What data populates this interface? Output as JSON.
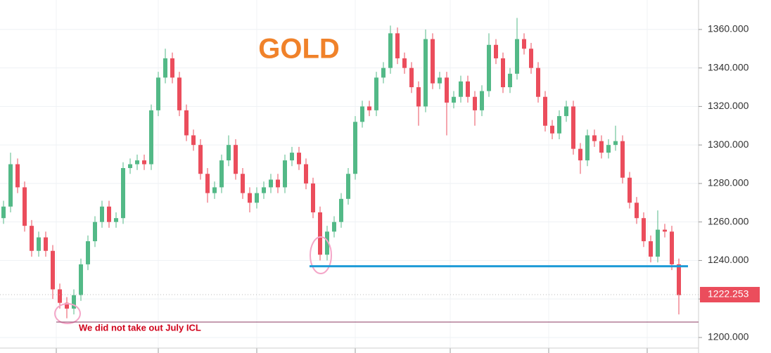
{
  "chart_data": {
    "type": "candlestick",
    "title": "GOLD",
    "annotation": "We did not take out July ICL",
    "up_color": "#53b987",
    "down_color": "#eb4d5c",
    "ylim": [
      1194.5,
      1375.3
    ],
    "yticks": [
      {
        "value": 1200,
        "label": "1200.000"
      },
      {
        "value": 1220,
        "label": "1220.000"
      },
      {
        "value": 1240,
        "label": "1240.000"
      },
      {
        "value": 1260,
        "label": "1260.000"
      },
      {
        "value": 1280,
        "label": "1280.000"
      },
      {
        "value": 1300,
        "label": "1300.000"
      },
      {
        "value": 1320,
        "label": "1320.000"
      },
      {
        "value": 1340,
        "label": "1340.000"
      },
      {
        "value": 1360,
        "label": "1360.000"
      }
    ],
    "grid": true,
    "last_price": 1222.253,
    "hlines": [
      {
        "value": 1237,
        "color": "#1e9bd7"
      },
      {
        "value": 1208,
        "color": "#8b3a62"
      }
    ],
    "candles": [
      [
        1262,
        1271,
        1259,
        1268
      ],
      [
        1268,
        1296,
        1265,
        1290
      ],
      [
        1290,
        1293,
        1275,
        1278
      ],
      [
        1278,
        1281,
        1255,
        1258
      ],
      [
        1258,
        1261,
        1242,
        1245
      ],
      [
        1245,
        1255,
        1242,
        1252
      ],
      [
        1252,
        1255,
        1242,
        1245
      ],
      [
        1245,
        1248,
        1220,
        1225
      ],
      [
        1225,
        1228,
        1215,
        1218
      ],
      [
        1218,
        1221,
        1210,
        1215
      ],
      [
        1215,
        1225,
        1212,
        1222
      ],
      [
        1222,
        1241,
        1219,
        1238
      ],
      [
        1238,
        1253,
        1235,
        1250
      ],
      [
        1250,
        1263,
        1247,
        1260
      ],
      [
        1260,
        1271,
        1257,
        1268
      ],
      [
        1268,
        1271,
        1257,
        1260
      ],
      [
        1260,
        1265,
        1257,
        1262
      ],
      [
        1262,
        1291,
        1259,
        1288
      ],
      [
        1288,
        1293,
        1285,
        1290
      ],
      [
        1290,
        1295,
        1287,
        1292
      ],
      [
        1292,
        1295,
        1287,
        1290
      ],
      [
        1290,
        1321,
        1287,
        1318
      ],
      [
        1318,
        1338,
        1315,
        1335
      ],
      [
        1335,
        1350,
        1332,
        1345
      ],
      [
        1345,
        1348,
        1332,
        1335
      ],
      [
        1335,
        1338,
        1315,
        1318
      ],
      [
        1318,
        1321,
        1302,
        1305
      ],
      [
        1305,
        1308,
        1297,
        1300
      ],
      [
        1300,
        1303,
        1282,
        1285
      ],
      [
        1285,
        1288,
        1270,
        1275
      ],
      [
        1275,
        1281,
        1272,
        1278
      ],
      [
        1278,
        1295,
        1275,
        1292
      ],
      [
        1292,
        1305,
        1289,
        1300
      ],
      [
        1300,
        1303,
        1282,
        1285
      ],
      [
        1285,
        1288,
        1272,
        1275
      ],
      [
        1275,
        1278,
        1265,
        1270
      ],
      [
        1270,
        1278,
        1267,
        1275
      ],
      [
        1275,
        1281,
        1272,
        1278
      ],
      [
        1278,
        1285,
        1275,
        1282
      ],
      [
        1282,
        1285,
        1275,
        1278
      ],
      [
        1278,
        1295,
        1275,
        1292
      ],
      [
        1292,
        1299,
        1289,
        1296
      ],
      [
        1296,
        1299,
        1287,
        1290
      ],
      [
        1290,
        1293,
        1277,
        1280
      ],
      [
        1280,
        1283,
        1262,
        1265
      ],
      [
        1265,
        1268,
        1240,
        1243
      ],
      [
        1243,
        1258,
        1240,
        1255
      ],
      [
        1255,
        1263,
        1252,
        1260
      ],
      [
        1260,
        1275,
        1257,
        1272
      ],
      [
        1272,
        1288,
        1269,
        1285
      ],
      [
        1285,
        1315,
        1282,
        1312
      ],
      [
        1312,
        1323,
        1309,
        1320
      ],
      [
        1320,
        1323,
        1315,
        1318
      ],
      [
        1318,
        1338,
        1315,
        1335
      ],
      [
        1335,
        1343,
        1332,
        1340
      ],
      [
        1340,
        1362,
        1337,
        1358
      ],
      [
        1358,
        1361,
        1342,
        1345
      ],
      [
        1345,
        1348,
        1337,
        1340
      ],
      [
        1340,
        1343,
        1327,
        1330
      ],
      [
        1330,
        1333,
        1310,
        1320
      ],
      [
        1320,
        1360,
        1317,
        1355
      ],
      [
        1355,
        1358,
        1329,
        1332
      ],
      [
        1332,
        1338,
        1329,
        1335
      ],
      [
        1335,
        1338,
        1305,
        1322
      ],
      [
        1322,
        1328,
        1319,
        1325
      ],
      [
        1325,
        1336,
        1322,
        1333
      ],
      [
        1333,
        1336,
        1322,
        1325
      ],
      [
        1325,
        1328,
        1310,
        1318
      ],
      [
        1318,
        1331,
        1315,
        1328
      ],
      [
        1328,
        1358,
        1325,
        1352
      ],
      [
        1352,
        1355,
        1342,
        1345
      ],
      [
        1345,
        1348,
        1327,
        1330
      ],
      [
        1330,
        1340,
        1327,
        1337
      ],
      [
        1337,
        1366,
        1334,
        1355
      ],
      [
        1355,
        1358,
        1347,
        1350
      ],
      [
        1350,
        1353,
        1337,
        1340
      ],
      [
        1340,
        1343,
        1322,
        1325
      ],
      [
        1325,
        1328,
        1307,
        1310
      ],
      [
        1310,
        1313,
        1303,
        1306
      ],
      [
        1306,
        1318,
        1303,
        1315
      ],
      [
        1315,
        1323,
        1312,
        1320
      ],
      [
        1320,
        1323,
        1295,
        1298
      ],
      [
        1298,
        1301,
        1285,
        1292
      ],
      [
        1292,
        1308,
        1289,
        1305
      ],
      [
        1305,
        1308,
        1299,
        1302
      ],
      [
        1302,
        1305,
        1293,
        1296
      ],
      [
        1296,
        1303,
        1293,
        1300
      ],
      [
        1300,
        1310,
        1297,
        1302
      ],
      [
        1302,
        1305,
        1280,
        1283
      ],
      [
        1283,
        1286,
        1267,
        1270
      ],
      [
        1270,
        1273,
        1259,
        1262
      ],
      [
        1262,
        1265,
        1247,
        1250
      ],
      [
        1250,
        1253,
        1239,
        1242
      ],
      [
        1242,
        1266,
        1239,
        1256
      ],
      [
        1256,
        1259,
        1252,
        1255
      ],
      [
        1255,
        1258,
        1235,
        1238
      ],
      [
        1238,
        1241,
        1212,
        1222
      ]
    ]
  }
}
